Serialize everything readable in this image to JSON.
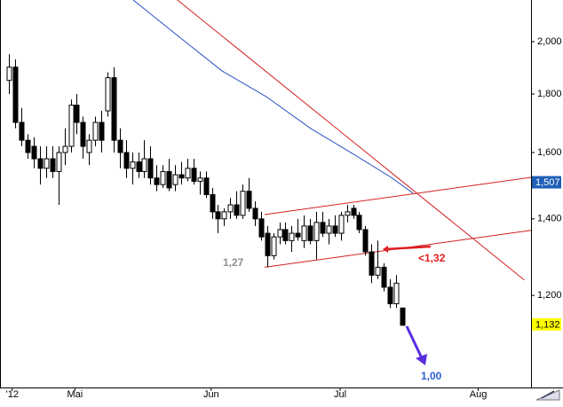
{
  "chart_data": {
    "type": "candlestick",
    "log": true,
    "ylim": [
      0.997,
      2.175
    ],
    "xlim": [
      -0.5,
      86
    ],
    "yticks": [
      {
        "value": 2.0,
        "label": "2,000"
      },
      {
        "value": 1.8,
        "label": "1,800"
      },
      {
        "value": 1.6,
        "label": "1,600"
      },
      {
        "value": 1.4,
        "label": "1,400"
      },
      {
        "value": 1.2,
        "label": "1,200"
      }
    ],
    "xticks": [
      {
        "value": 1.5,
        "label": "'12"
      },
      {
        "value": 11.7,
        "label": "Mai"
      },
      {
        "value": 33.9,
        "label": "Jun"
      },
      {
        "value": 54.9,
        "label": "Jul"
      },
      {
        "value": 77.4,
        "label": "Aug"
      }
    ],
    "ohlc": [
      [
        1.85,
        1.95,
        1.8,
        1.9
      ],
      [
        1.9,
        1.93,
        1.68,
        1.7
      ],
      [
        1.7,
        1.75,
        1.62,
        1.64
      ],
      [
        1.64,
        1.66,
        1.58,
        1.6
      ],
      [
        1.62,
        1.65,
        1.55,
        1.58
      ],
      [
        1.58,
        1.62,
        1.5,
        1.55
      ],
      [
        1.55,
        1.62,
        1.52,
        1.58
      ],
      [
        1.58,
        1.62,
        1.52,
        1.54
      ],
      [
        1.54,
        1.62,
        1.44,
        1.6
      ],
      [
        1.6,
        1.68,
        1.56,
        1.62
      ],
      [
        1.62,
        1.78,
        1.6,
        1.76
      ],
      [
        1.76,
        1.8,
        1.66,
        1.7
      ],
      [
        1.7,
        1.72,
        1.58,
        1.62
      ],
      [
        1.6,
        1.66,
        1.56,
        1.64
      ],
      [
        1.64,
        1.72,
        1.62,
        1.7
      ],
      [
        1.7,
        1.74,
        1.6,
        1.64
      ],
      [
        1.74,
        1.88,
        1.72,
        1.86
      ],
      [
        1.86,
        1.9,
        1.6,
        1.64
      ],
      [
        1.64,
        1.68,
        1.55,
        1.6
      ],
      [
        1.6,
        1.64,
        1.52,
        1.55
      ],
      [
        1.55,
        1.6,
        1.5,
        1.57
      ],
      [
        1.57,
        1.6,
        1.52,
        1.54
      ],
      [
        1.54,
        1.64,
        1.52,
        1.58
      ],
      [
        1.58,
        1.62,
        1.5,
        1.52
      ],
      [
        1.52,
        1.56,
        1.48,
        1.5
      ],
      [
        1.5,
        1.56,
        1.49,
        1.54
      ],
      [
        1.54,
        1.58,
        1.48,
        1.49
      ],
      [
        1.5,
        1.56,
        1.48,
        1.53
      ],
      [
        1.53,
        1.57,
        1.5,
        1.52
      ],
      [
        1.52,
        1.58,
        1.51,
        1.55
      ],
      [
        1.55,
        1.58,
        1.5,
        1.51
      ],
      [
        1.51,
        1.54,
        1.47,
        1.52
      ],
      [
        1.52,
        1.54,
        1.46,
        1.47
      ],
      [
        1.47,
        1.49,
        1.4,
        1.42
      ],
      [
        1.42,
        1.44,
        1.36,
        1.4
      ],
      [
        1.4,
        1.43,
        1.38,
        1.42
      ],
      [
        1.42,
        1.46,
        1.4,
        1.44
      ],
      [
        1.44,
        1.48,
        1.4,
        1.41
      ],
      [
        1.41,
        1.5,
        1.4,
        1.48
      ],
      [
        1.48,
        1.52,
        1.42,
        1.43
      ],
      [
        1.43,
        1.45,
        1.38,
        1.4
      ],
      [
        1.4,
        1.42,
        1.34,
        1.35
      ],
      [
        1.36,
        1.38,
        1.27,
        1.3
      ],
      [
        1.3,
        1.36,
        1.29,
        1.35
      ],
      [
        1.35,
        1.39,
        1.33,
        1.37
      ],
      [
        1.37,
        1.39,
        1.33,
        1.34
      ],
      [
        1.34,
        1.38,
        1.31,
        1.36
      ],
      [
        1.36,
        1.4,
        1.34,
        1.35
      ],
      [
        1.34,
        1.41,
        1.32,
        1.38
      ],
      [
        1.38,
        1.4,
        1.33,
        1.34
      ],
      [
        1.34,
        1.42,
        1.29,
        1.39
      ],
      [
        1.39,
        1.42,
        1.35,
        1.36
      ],
      [
        1.36,
        1.4,
        1.33,
        1.38
      ],
      [
        1.38,
        1.41,
        1.35,
        1.36
      ],
      [
        1.36,
        1.42,
        1.34,
        1.41
      ],
      [
        1.41,
        1.44,
        1.39,
        1.42
      ],
      [
        1.43,
        1.44,
        1.4,
        1.41
      ],
      [
        1.41,
        1.42,
        1.36,
        1.37
      ],
      [
        1.37,
        1.38,
        1.3,
        1.31
      ],
      [
        1.31,
        1.33,
        1.23,
        1.25
      ],
      [
        1.25,
        1.34,
        1.24,
        1.27
      ],
      [
        1.27,
        1.28,
        1.21,
        1.22
      ],
      [
        1.22,
        1.24,
        1.17,
        1.18
      ],
      [
        1.18,
        1.25,
        1.17,
        1.23
      ],
      [
        1.17,
        1.17,
        1.13,
        1.13
      ]
    ],
    "lines": [
      {
        "color": "#2a4fc0",
        "x": [
          21.2,
          28.4,
          35.7,
          42.9,
          50.2,
          57.4,
          63.2,
          66.8
        ],
        "values": [
          2.175,
          2.025,
          1.885,
          1.79,
          1.678,
          1.591,
          1.522,
          1.474
        ]
      },
      {
        "color": "#d42020",
        "x": [
          28.4,
          84.9
        ],
        "values": [
          2.175,
          1.238
        ]
      },
      {
        "color": "#d42020",
        "x": [
          42.6,
          86
        ],
        "values": [
          1.412,
          1.522
        ]
      },
      {
        "color": "#d42020",
        "x": [
          42.6,
          86
        ],
        "values": [
          1.27,
          1.368
        ]
      }
    ],
    "price_labels": [
      {
        "value": 1.507,
        "label": "1,507",
        "color": "#1f5fb8",
        "text_color": "#ffffff"
      },
      {
        "value": 1.132,
        "label": "1,132",
        "color": "#ffff00",
        "text_color": "#000000"
      }
    ],
    "annotations": [
      {
        "text": "1,27",
        "color": "#909090"
      },
      {
        "text": "<1,32",
        "color": "#e02020"
      },
      {
        "text": "1,00",
        "color": "#2a5fd0"
      }
    ]
  }
}
